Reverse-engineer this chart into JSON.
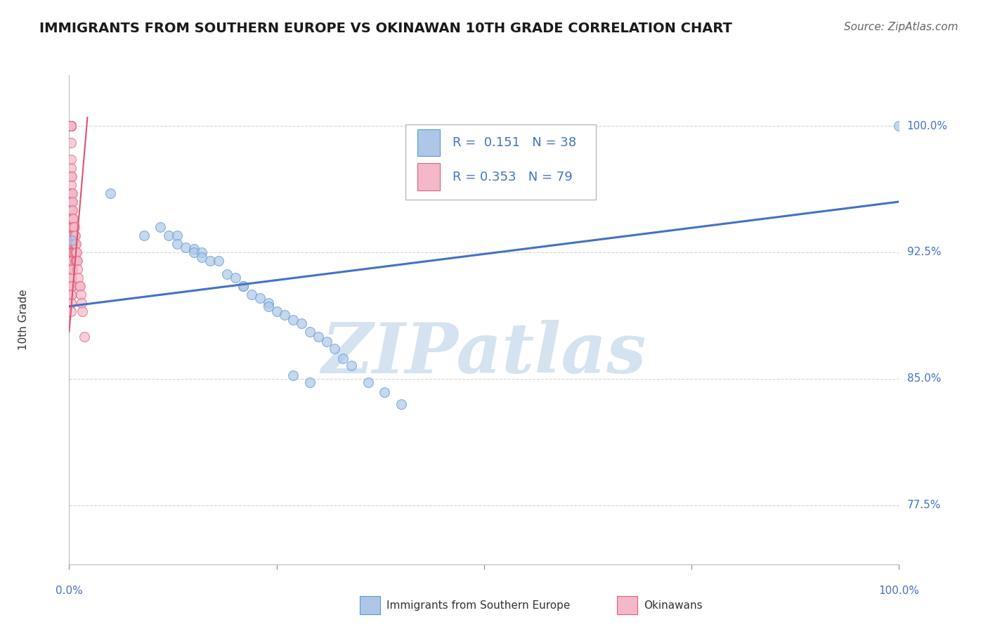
{
  "title": "IMMIGRANTS FROM SOUTHERN EUROPE VS OKINAWAN 10TH GRADE CORRELATION CHART",
  "source": "Source: ZipAtlas.com",
  "ylabel": "10th Grade",
  "xlim": [
    0,
    1.0
  ],
  "ylim": [
    0.74,
    1.03
  ],
  "ytick_labels": [
    "77.5%",
    "85.0%",
    "92.5%",
    "100.0%"
  ],
  "ytick_values": [
    0.775,
    0.85,
    0.925,
    1.0
  ],
  "r_blue": 0.151,
  "n_blue": 38,
  "r_pink": 0.353,
  "n_pink": 79,
  "blue_color": "#aec6e8",
  "blue_edge": "#5b9bd5",
  "pink_color": "#f4b8c8",
  "pink_edge": "#e06080",
  "trend_color": "#4472c4",
  "pink_trend_color": "#e05070",
  "blue_scatter_x": [
    0.003,
    0.05,
    0.09,
    0.11,
    0.12,
    0.13,
    0.13,
    0.14,
    0.15,
    0.15,
    0.16,
    0.16,
    0.17,
    0.18,
    0.19,
    0.2,
    0.21,
    0.21,
    0.22,
    0.23,
    0.24,
    0.24,
    0.25,
    0.26,
    0.27,
    0.28,
    0.29,
    0.3,
    0.31,
    0.32,
    0.33,
    0.34,
    0.36,
    0.38,
    0.4,
    0.27,
    0.29,
    1.0
  ],
  "blue_scatter_y": [
    0.932,
    0.96,
    0.935,
    0.94,
    0.935,
    0.935,
    0.93,
    0.928,
    0.927,
    0.925,
    0.925,
    0.922,
    0.92,
    0.92,
    0.912,
    0.91,
    0.905,
    0.905,
    0.9,
    0.898,
    0.895,
    0.893,
    0.89,
    0.888,
    0.885,
    0.883,
    0.878,
    0.875,
    0.872,
    0.868,
    0.862,
    0.858,
    0.848,
    0.842,
    0.835,
    0.852,
    0.848,
    1.0
  ],
  "pink_scatter_x": [
    0.002,
    0.002,
    0.002,
    0.002,
    0.002,
    0.002,
    0.002,
    0.002,
    0.002,
    0.002,
    0.002,
    0.002,
    0.002,
    0.002,
    0.002,
    0.002,
    0.002,
    0.002,
    0.002,
    0.002,
    0.002,
    0.002,
    0.002,
    0.002,
    0.002,
    0.002,
    0.002,
    0.002,
    0.003,
    0.003,
    0.003,
    0.003,
    0.003,
    0.003,
    0.003,
    0.003,
    0.003,
    0.003,
    0.003,
    0.003,
    0.003,
    0.003,
    0.004,
    0.004,
    0.004,
    0.004,
    0.004,
    0.004,
    0.004,
    0.004,
    0.004,
    0.004,
    0.005,
    0.005,
    0.005,
    0.005,
    0.005,
    0.006,
    0.006,
    0.006,
    0.006,
    0.007,
    0.007,
    0.007,
    0.007,
    0.008,
    0.008,
    0.008,
    0.009,
    0.009,
    0.01,
    0.01,
    0.011,
    0.012,
    0.013,
    0.014,
    0.015,
    0.016,
    0.018
  ],
  "pink_scatter_y": [
    1.0,
    1.0,
    1.0,
    1.0,
    1.0,
    1.0,
    1.0,
    1.0,
    0.99,
    0.98,
    0.975,
    0.97,
    0.965,
    0.96,
    0.955,
    0.95,
    0.945,
    0.94,
    0.935,
    0.93,
    0.925,
    0.92,
    0.915,
    0.91,
    0.905,
    0.9,
    0.895,
    0.89,
    0.97,
    0.96,
    0.955,
    0.95,
    0.945,
    0.94,
    0.935,
    0.93,
    0.925,
    0.92,
    0.915,
    0.91,
    0.905,
    0.9,
    0.96,
    0.955,
    0.95,
    0.945,
    0.94,
    0.935,
    0.93,
    0.925,
    0.92,
    0.915,
    0.945,
    0.94,
    0.935,
    0.93,
    0.925,
    0.94,
    0.935,
    0.93,
    0.925,
    0.935,
    0.93,
    0.925,
    0.92,
    0.93,
    0.925,
    0.92,
    0.925,
    0.92,
    0.92,
    0.915,
    0.91,
    0.905,
    0.905,
    0.9,
    0.895,
    0.89,
    0.875
  ],
  "trend_x": [
    0.0,
    1.0
  ],
  "trend_y": [
    0.893,
    0.955
  ],
  "pink_trend_x": [
    0.0,
    0.022
  ],
  "pink_trend_y": [
    0.878,
    1.005
  ],
  "watermark_text": "ZIPatlas",
  "watermark_color": "#d5e3f0",
  "grid_color": "#cccccc"
}
